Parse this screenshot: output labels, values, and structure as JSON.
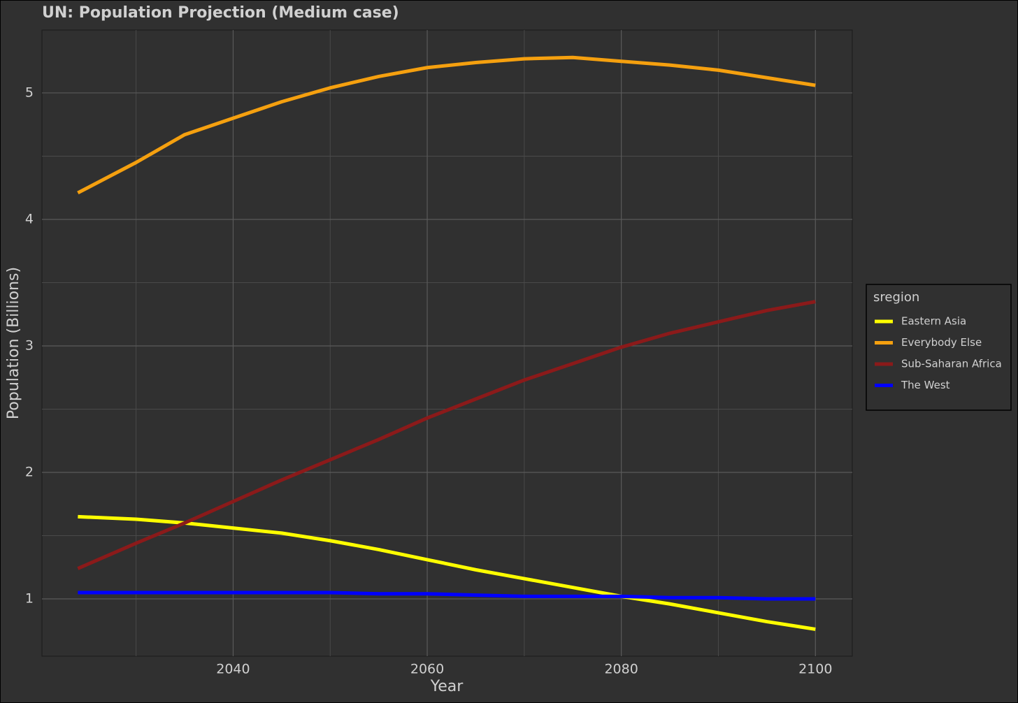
{
  "chart_data": {
    "type": "line",
    "title": "UN: Population Projection (Medium case)",
    "x_label": "Year",
    "y_label": "Population (Billions)",
    "legend_title": "sregion",
    "legend_position": "right",
    "grid": true,
    "x": [
      2024,
      2030,
      2035,
      2040,
      2045,
      2050,
      2055,
      2060,
      2065,
      2070,
      2075,
      2080,
      2085,
      2090,
      2095,
      2100
    ],
    "series": [
      {
        "name": "Eastern Asia",
        "color": "#ffff00",
        "values": [
          1.65,
          1.63,
          1.6,
          1.56,
          1.52,
          1.46,
          1.39,
          1.31,
          1.23,
          1.16,
          1.09,
          1.02,
          0.96,
          0.89,
          0.82,
          0.76
        ]
      },
      {
        "name": "Everybody Else",
        "color": "#f5a00f",
        "values": [
          4.21,
          4.45,
          4.67,
          4.8,
          4.93,
          5.04,
          5.13,
          5.2,
          5.24,
          5.27,
          5.28,
          5.25,
          5.22,
          5.18,
          5.12,
          5.06
        ]
      },
      {
        "name": "Sub-Saharan Africa",
        "color": "#8b1a1a",
        "values": [
          1.24,
          1.44,
          1.6,
          1.77,
          1.94,
          2.1,
          2.26,
          2.43,
          2.58,
          2.73,
          2.86,
          2.99,
          3.1,
          3.19,
          3.28,
          3.35
        ]
      },
      {
        "name": "The West",
        "color": "#0000ff",
        "values": [
          1.05,
          1.05,
          1.05,
          1.05,
          1.05,
          1.05,
          1.04,
          1.04,
          1.03,
          1.02,
          1.02,
          1.02,
          1.01,
          1.01,
          1.0,
          1.0
        ]
      }
    ],
    "xlim": [
      2020.3,
      2103.8
    ],
    "xticks": [
      2040,
      2060,
      2080,
      2100
    ],
    "ylim": [
      0.547,
      5.497
    ],
    "yticks": [
      1,
      2,
      3,
      4,
      5
    ]
  }
}
